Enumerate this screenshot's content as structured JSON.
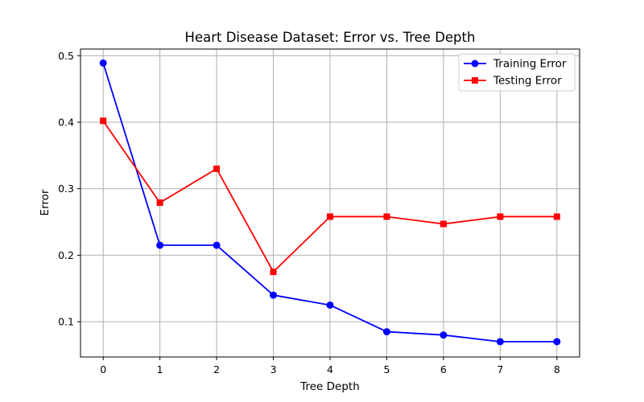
{
  "chart_data": {
    "type": "line",
    "title": "Heart Disease Dataset: Error vs. Tree Depth",
    "xlabel": "Tree Depth",
    "ylabel": "Error",
    "x": [
      0,
      1,
      2,
      3,
      4,
      5,
      6,
      7,
      8
    ],
    "xticks": [
      "0",
      "1",
      "2",
      "3",
      "4",
      "5",
      "6",
      "7",
      "8"
    ],
    "yticks": [
      "0.1",
      "0.2",
      "0.3",
      "0.4",
      "0.5"
    ],
    "xlim": [
      -0.4,
      8.4
    ],
    "ylim": [
      0.047,
      0.51
    ],
    "grid": true,
    "legend_position": "top-right",
    "series": [
      {
        "name": "Training Error",
        "color": "#0000ff",
        "marker": "circle",
        "values": [
          0.489,
          0.215,
          0.215,
          0.14,
          0.125,
          0.085,
          0.08,
          0.07,
          0.07
        ]
      },
      {
        "name": "Testing Error",
        "color": "#ff0000",
        "marker": "square",
        "values": [
          0.402,
          0.279,
          0.33,
          0.175,
          0.258,
          0.258,
          0.247,
          0.258,
          0.258
        ]
      }
    ]
  }
}
